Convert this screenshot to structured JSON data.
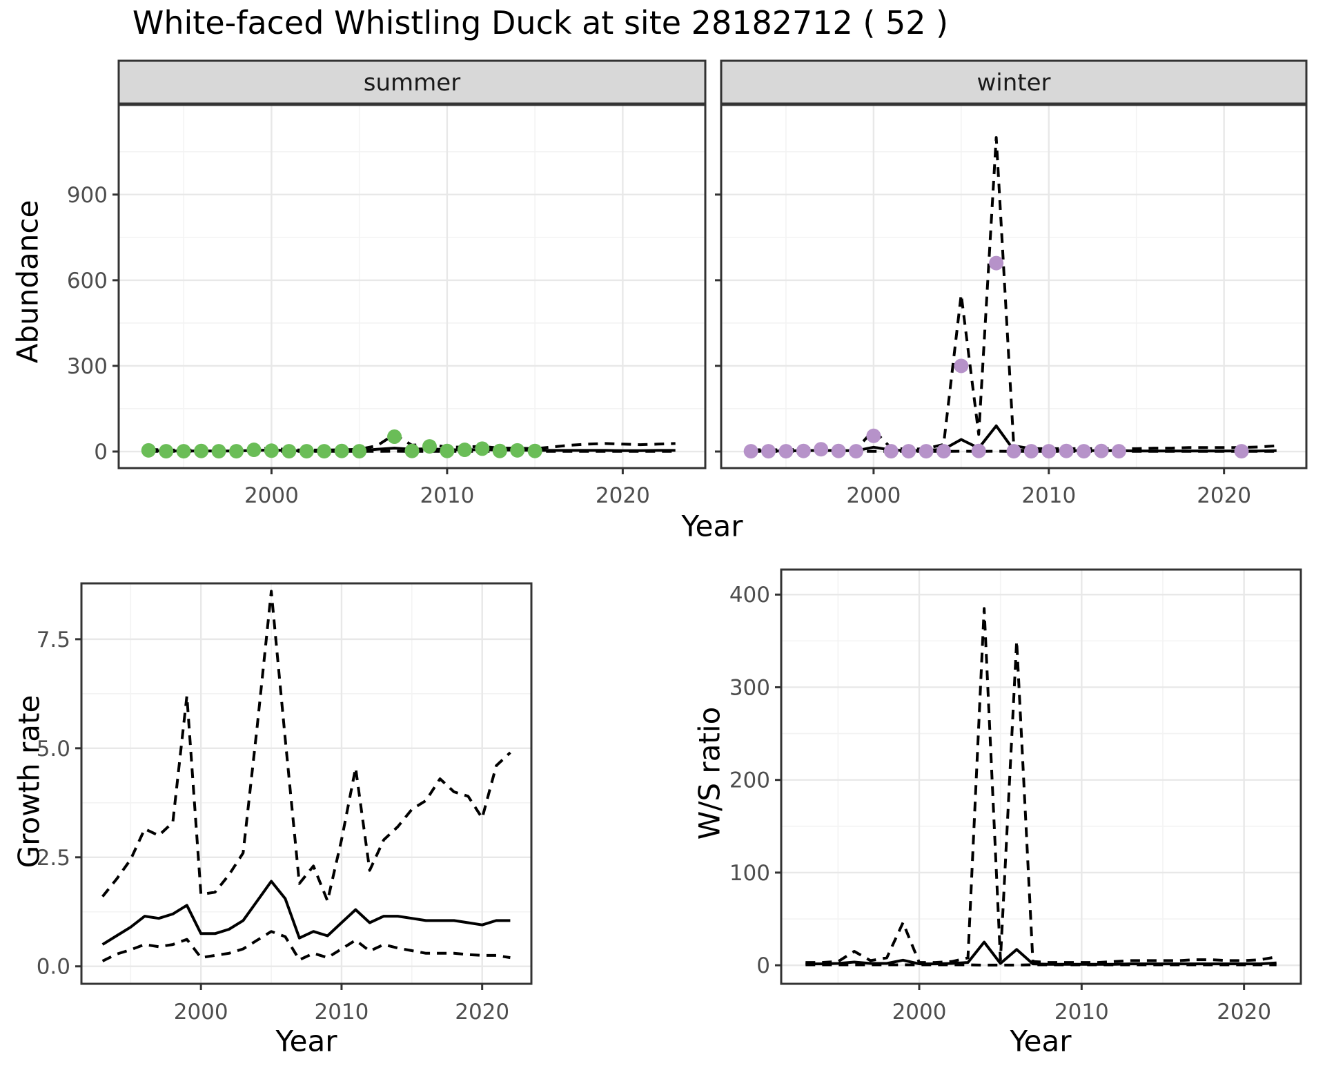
{
  "title": "White-faced Whistling Duck at site 28182712 ( 52 )",
  "axis_labels": {
    "abundance_y": "Abundance",
    "top_x": "Year",
    "growth_y": "Growth rate",
    "growth_x": "Year",
    "ws_y": "W/S ratio",
    "ws_x": "Year"
  },
  "colors": {
    "summer_point": "#6abd57",
    "winter_point": "#b692c9",
    "line": "#000000",
    "strip_bg": "#d8d8d8",
    "panel_border": "#333333",
    "grid_major": "#e8e8e8",
    "grid_minor": "#f3f3f3",
    "tick_text": "#4d4d4d"
  },
  "chart_data": [
    {
      "type": "line",
      "panel_id": "summer",
      "facet_label": "summer",
      "xlabel": "Year",
      "ylabel": "Abundance",
      "xlim": [
        1991.3,
        2024.7
      ],
      "ylim": [
        -58,
        1214
      ],
      "x_ticks": [
        2000,
        2010,
        2020
      ],
      "x_minor": [
        1995,
        2005,
        2015
      ],
      "y_ticks": [
        0,
        300,
        600,
        900
      ],
      "y_tick_labels": [
        "0",
        "300",
        "600",
        "900"
      ],
      "y_minor": [
        150,
        450,
        750,
        1050
      ],
      "show_y_tick_labels": true,
      "grid": true,
      "series": [
        {
          "name": "upper-ci",
          "style": "dashed",
          "x": [
            1993,
            1994,
            1995,
            1996,
            1997,
            1998,
            1999,
            2000,
            2001,
            2002,
            2003,
            2004,
            2005,
            2006,
            2007,
            2008,
            2009,
            2010,
            2011,
            2012,
            2013,
            2014,
            2015,
            2016,
            2017,
            2018,
            2019,
            2020,
            2021,
            2022,
            2023
          ],
          "y": [
            8,
            5,
            5,
            5,
            5,
            5,
            9,
            12,
            6,
            5,
            5,
            6,
            8,
            20,
            60,
            22,
            26,
            15,
            16,
            18,
            12,
            12,
            10,
            16,
            22,
            26,
            28,
            26,
            24,
            26,
            28
          ]
        },
        {
          "name": "lower-ci",
          "style": "dashed",
          "x": [
            1993,
            1994,
            1995,
            1996,
            1997,
            1998,
            1999,
            2000,
            2001,
            2002,
            2003,
            2004,
            2005,
            2006,
            2007,
            2008,
            2009,
            2010,
            2011,
            2012,
            2013,
            2014,
            2015,
            2016,
            2017,
            2018,
            2019,
            2020,
            2021,
            2022,
            2023
          ],
          "y": [
            0.5,
            0.5,
            0.5,
            0.5,
            0.5,
            0.5,
            0.5,
            0.5,
            0.5,
            0.5,
            0.5,
            0.5,
            0.5,
            0.5,
            1,
            0.5,
            0.5,
            0.5,
            0.5,
            0.5,
            0.5,
            0.5,
            0.5,
            0.5,
            0.5,
            0.5,
            0.5,
            0.5,
            0.5,
            0.5,
            0.5
          ]
        },
        {
          "name": "median",
          "style": "solid",
          "x": [
            1993,
            1994,
            1995,
            1996,
            1997,
            1998,
            1999,
            2000,
            2001,
            2002,
            2003,
            2004,
            2005,
            2006,
            2007,
            2008,
            2009,
            2010,
            2011,
            2012,
            2013,
            2014,
            2015,
            2016,
            2017,
            2018,
            2019,
            2020,
            2021,
            2022,
            2023
          ],
          "y": [
            3,
            2,
            2,
            2,
            2,
            2,
            4,
            5,
            3,
            2,
            2,
            2,
            3,
            8,
            12,
            8,
            10,
            6,
            6,
            7,
            5,
            5,
            4,
            4,
            4,
            4,
            4,
            3,
            3,
            4,
            4
          ]
        },
        {
          "name": "observed-counts",
          "style": "points",
          "color_key": "summer_point",
          "x": [
            1993,
            1994,
            1995,
            1996,
            1997,
            1998,
            1999,
            2000,
            2001,
            2002,
            2003,
            2004,
            2005,
            2007,
            2008,
            2009,
            2010,
            2011,
            2012,
            2013,
            2014,
            2015
          ],
          "y": [
            4,
            1,
            1,
            2,
            1,
            1,
            6,
            3,
            1,
            1,
            1,
            2,
            1,
            52,
            2,
            18,
            2,
            6,
            10,
            2,
            4,
            2
          ]
        }
      ]
    },
    {
      "type": "line",
      "panel_id": "winter",
      "facet_label": "winter",
      "xlabel": "Year",
      "ylabel": "Abundance",
      "xlim": [
        1991.3,
        2024.7
      ],
      "ylim": [
        -58,
        1214
      ],
      "x_ticks": [
        2000,
        2010,
        2020
      ],
      "x_minor": [
        1995,
        2005,
        2015
      ],
      "y_ticks": [
        0,
        300,
        600,
        900
      ],
      "y_tick_labels": [
        "0",
        "300",
        "600",
        "900"
      ],
      "y_minor": [
        150,
        450,
        750,
        1050
      ],
      "show_y_tick_labels": false,
      "grid": true,
      "series": [
        {
          "name": "upper-ci",
          "style": "dashed",
          "x": [
            1993,
            1994,
            1995,
            1996,
            1997,
            1998,
            1999,
            2000,
            2001,
            2002,
            2003,
            2004,
            2005,
            2006,
            2007,
            2008,
            2009,
            2010,
            2011,
            2012,
            2013,
            2014,
            2015,
            2016,
            2017,
            2018,
            2019,
            2020,
            2021,
            2022,
            2023
          ],
          "y": [
            6,
            6,
            6,
            8,
            12,
            8,
            8,
            75,
            12,
            8,
            10,
            25,
            550,
            60,
            1100,
            20,
            10,
            10,
            10,
            10,
            10,
            10,
            10,
            12,
            12,
            14,
            14,
            14,
            14,
            16,
            20
          ]
        },
        {
          "name": "lower-ci",
          "style": "dashed",
          "x": [
            1993,
            1994,
            1995,
            1996,
            1997,
            1998,
            1999,
            2000,
            2001,
            2002,
            2003,
            2004,
            2005,
            2006,
            2007,
            2008,
            2009,
            2010,
            2011,
            2012,
            2013,
            2014,
            2015,
            2016,
            2017,
            2018,
            2019,
            2020,
            2021,
            2022,
            2023
          ],
          "y": [
            0.5,
            0.5,
            0.5,
            0.5,
            0.5,
            0.5,
            0.5,
            0.5,
            0.5,
            0.5,
            0.5,
            0.5,
            1,
            0.5,
            1,
            0.5,
            0.5,
            0.5,
            0.5,
            0.5,
            0.5,
            0.5,
            0.5,
            0.5,
            0.5,
            0.5,
            0.5,
            0.5,
            0.5,
            0.5,
            0.5
          ]
        },
        {
          "name": "median",
          "style": "solid",
          "x": [
            1993,
            1994,
            1995,
            1996,
            1997,
            1998,
            1999,
            2000,
            2001,
            2002,
            2003,
            2004,
            2005,
            2006,
            2007,
            2008,
            2009,
            2010,
            2011,
            2012,
            2013,
            2014,
            2015,
            2016,
            2017,
            2018,
            2019,
            2020,
            2021,
            2022,
            2023
          ],
          "y": [
            2,
            2,
            2,
            3,
            4,
            3,
            3,
            15,
            5,
            3,
            4,
            8,
            42,
            12,
            90,
            5,
            3,
            3,
            3,
            3,
            3,
            3,
            2,
            2,
            2,
            2,
            2,
            2,
            2,
            2,
            3
          ]
        },
        {
          "name": "observed-counts",
          "style": "points",
          "color_key": "winter_point",
          "x": [
            1993,
            1994,
            1995,
            1996,
            1997,
            1998,
            1999,
            2000,
            2001,
            2002,
            2003,
            2004,
            2005,
            2006,
            2007,
            2008,
            2009,
            2010,
            2011,
            2012,
            2013,
            2014,
            2021
          ],
          "y": [
            1,
            1,
            1,
            2,
            8,
            2,
            1,
            55,
            1,
            1,
            1,
            1,
            300,
            2,
            660,
            1,
            1,
            1,
            2,
            1,
            2,
            1,
            1
          ]
        }
      ]
    },
    {
      "type": "line",
      "panel_id": "growth",
      "facet_label": null,
      "xlabel": "Year",
      "ylabel": "Growth rate",
      "xlim": [
        1991.5,
        2023.5
      ],
      "ylim": [
        -0.4,
        8.78
      ],
      "x_ticks": [
        2000,
        2010,
        2020
      ],
      "x_minor": [
        1995,
        2005,
        2015
      ],
      "y_ticks": [
        0,
        2.5,
        5,
        7.5
      ],
      "y_tick_labels": [
        "0.0",
        "2.5",
        "5.0",
        "7.5"
      ],
      "y_minor": [
        1.25,
        3.75,
        6.25
      ],
      "show_y_tick_labels": true,
      "grid": true,
      "series": [
        {
          "name": "upper-ci",
          "style": "dashed",
          "x": [
            1993,
            1994,
            1995,
            1996,
            1997,
            1998,
            1999,
            2000,
            2001,
            2002,
            2003,
            2004,
            2005,
            2006,
            2007,
            2008,
            2009,
            2010,
            2011,
            2012,
            2013,
            2014,
            2015,
            2016,
            2017,
            2018,
            2019,
            2020,
            2021,
            2022
          ],
          "y": [
            1.6,
            2.0,
            2.45,
            3.15,
            3.0,
            3.3,
            6.2,
            1.65,
            1.7,
            2.1,
            2.6,
            5.5,
            8.6,
            5.2,
            1.9,
            2.3,
            1.5,
            2.9,
            4.55,
            2.2,
            2.9,
            3.2,
            3.6,
            3.8,
            4.3,
            4.0,
            3.9,
            3.4,
            4.6,
            4.9
          ]
        },
        {
          "name": "lower-ci",
          "style": "dashed",
          "x": [
            1993,
            1994,
            1995,
            1996,
            1997,
            1998,
            1999,
            2000,
            2001,
            2002,
            2003,
            2004,
            2005,
            2006,
            2007,
            2008,
            2009,
            2010,
            2011,
            2012,
            2013,
            2014,
            2015,
            2016,
            2017,
            2018,
            2019,
            2020,
            2021,
            2022
          ],
          "y": [
            0.12,
            0.28,
            0.38,
            0.5,
            0.45,
            0.5,
            0.62,
            0.2,
            0.25,
            0.3,
            0.4,
            0.6,
            0.8,
            0.68,
            0.15,
            0.3,
            0.2,
            0.4,
            0.6,
            0.35,
            0.5,
            0.42,
            0.36,
            0.3,
            0.3,
            0.3,
            0.27,
            0.25,
            0.25,
            0.2
          ]
        },
        {
          "name": "median",
          "style": "solid",
          "x": [
            1993,
            1994,
            1995,
            1996,
            1997,
            1998,
            1999,
            2000,
            2001,
            2002,
            2003,
            2004,
            2005,
            2006,
            2007,
            2008,
            2009,
            2010,
            2011,
            2012,
            2013,
            2014,
            2015,
            2016,
            2017,
            2018,
            2019,
            2020,
            2021,
            2022
          ],
          "y": [
            0.5,
            0.7,
            0.9,
            1.15,
            1.1,
            1.2,
            1.4,
            0.75,
            0.75,
            0.85,
            1.05,
            1.5,
            1.95,
            1.55,
            0.65,
            0.8,
            0.7,
            1.0,
            1.3,
            1.0,
            1.15,
            1.15,
            1.1,
            1.05,
            1.05,
            1.05,
            1.0,
            0.95,
            1.05,
            1.05
          ]
        }
      ]
    },
    {
      "type": "line",
      "panel_id": "ws",
      "facet_label": null,
      "xlabel": "Year",
      "ylabel": "W/S ratio",
      "xlim": [
        1991.5,
        2023.5
      ],
      "ylim": [
        -20,
        427
      ],
      "x_ticks": [
        2000,
        2010,
        2020
      ],
      "x_minor": [
        1995,
        2005,
        2015
      ],
      "y_ticks": [
        0,
        100,
        200,
        300,
        400
      ],
      "y_tick_labels": [
        "0",
        "100",
        "200",
        "300",
        "400"
      ],
      "y_minor": [
        50,
        150,
        250,
        350
      ],
      "show_y_tick_labels": true,
      "grid": true,
      "series": [
        {
          "name": "upper-ci",
          "style": "dashed",
          "x": [
            1993,
            1994,
            1995,
            1996,
            1997,
            1998,
            1999,
            2000,
            2001,
            2002,
            2003,
            2004,
            2005,
            2006,
            2007,
            2008,
            2009,
            2010,
            2011,
            2012,
            2013,
            2014,
            2015,
            2016,
            2017,
            2018,
            2019,
            2020,
            2021,
            2022
          ],
          "y": [
            3,
            3,
            4,
            15,
            5,
            8,
            46,
            3,
            3,
            4,
            8,
            385,
            6,
            350,
            4,
            3,
            3,
            3,
            3,
            4,
            5,
            5,
            5,
            5,
            6,
            6,
            5,
            5,
            6,
            9
          ]
        },
        {
          "name": "lower-ci",
          "style": "dashed",
          "x": [
            1993,
            1994,
            1995,
            1996,
            1997,
            1998,
            1999,
            2000,
            2001,
            2002,
            2003,
            2004,
            2005,
            2006,
            2007,
            2008,
            2009,
            2010,
            2011,
            2012,
            2013,
            2014,
            2015,
            2016,
            2017,
            2018,
            2019,
            2020,
            2021,
            2022
          ],
          "y": [
            0.5,
            0.5,
            0.5,
            0.5,
            0.5,
            0.5,
            0.5,
            0.5,
            0.5,
            0.5,
            0.5,
            0.2,
            0.3,
            0.2,
            0.5,
            0.5,
            0.5,
            0.5,
            0.5,
            0.5,
            0.5,
            0.5,
            0.5,
            0.5,
            0.5,
            0.5,
            0.5,
            0.5,
            0.5,
            0.5
          ]
        },
        {
          "name": "median",
          "style": "solid",
          "x": [
            1993,
            1994,
            1995,
            1996,
            1997,
            1998,
            1999,
            2000,
            2001,
            2002,
            2003,
            2004,
            2005,
            2006,
            2007,
            2008,
            2009,
            2010,
            2011,
            2012,
            2013,
            2014,
            2015,
            2016,
            2017,
            2018,
            2019,
            2020,
            2021,
            2022
          ],
          "y": [
            1.5,
            1.5,
            2,
            3.5,
            2,
            2,
            5.5,
            1.5,
            1.5,
            2,
            3,
            25,
            2,
            17,
            1.5,
            1,
            1,
            1,
            1,
            1,
            1.5,
            1.5,
            1.5,
            1.5,
            1.5,
            1.5,
            1.5,
            1.5,
            1.5,
            2.5
          ]
        }
      ]
    }
  ]
}
